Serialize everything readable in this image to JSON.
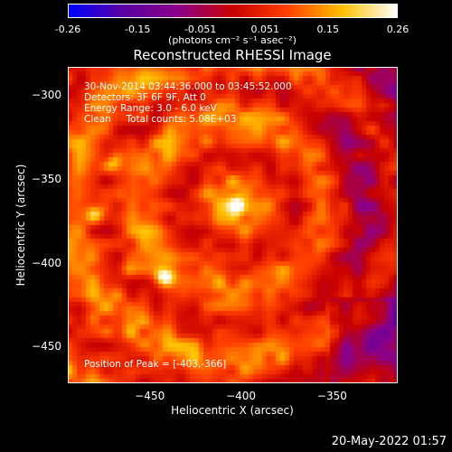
{
  "chart_data": {
    "type": "heatmap",
    "title": "Reconstructed RHESSI Image",
    "xlabel": "Heliocentric X (arcsec)",
    "ylabel": "Heliocentric Y (arcsec)",
    "xlim": [
      -495,
      -415
    ],
    "xlim_note": "",
    "x_ticks": [
      "-450",
      "-400",
      "-350"
    ],
    "x_tick_values": [
      -450,
      -400,
      -350
    ],
    "y_ticks": [
      "-300",
      "-350",
      "-400",
      "-450"
    ],
    "y_tick_values": [
      -300,
      -350,
      -400,
      -450
    ],
    "x_range": [
      -495,
      -314
    ],
    "y_range": [
      -472,
      -283
    ],
    "colorbar": {
      "ticks": [
        "-0.26",
        "-0.15",
        "-0.051",
        "0.051",
        "0.15",
        "0.26"
      ],
      "tick_values": [
        -0.26,
        -0.15,
        -0.051,
        0.051,
        0.15,
        0.26
      ],
      "range": [
        -0.26,
        0.26
      ],
      "units_label": "(photons cm⁻² s⁻¹ asec⁻²)",
      "colors": [
        "#0000ff",
        "#5a00a0",
        "#8a008a",
        "#c80000",
        "#ff4000",
        "#ffc000",
        "#ffffff"
      ]
    },
    "info_lines": [
      "30-Nov-2014 03:44:36.000 to 03:45:52.000",
      "Detectors: 3F 6F 9F, Att 0",
      "Energy Range: 3.0 - 6.0 keV",
      "Clean     Total counts: 5.08E+03"
    ],
    "peak_text": "Position of Peak = [-403,-366]",
    "peak": {
      "x": -403,
      "y": -366,
      "value": 0.26
    },
    "sources": [
      {
        "x": -403,
        "y": -366,
        "value": 0.26
      },
      {
        "x": -442,
        "y": -409,
        "value": 0.2
      },
      {
        "x": -461,
        "y": -404,
        "value": 0.14
      },
      {
        "x": -480,
        "y": -371,
        "value": 0.14
      },
      {
        "x": -470,
        "y": -341,
        "value": 0.12
      }
    ]
  },
  "timestamp": "20-May-2022 01:57"
}
